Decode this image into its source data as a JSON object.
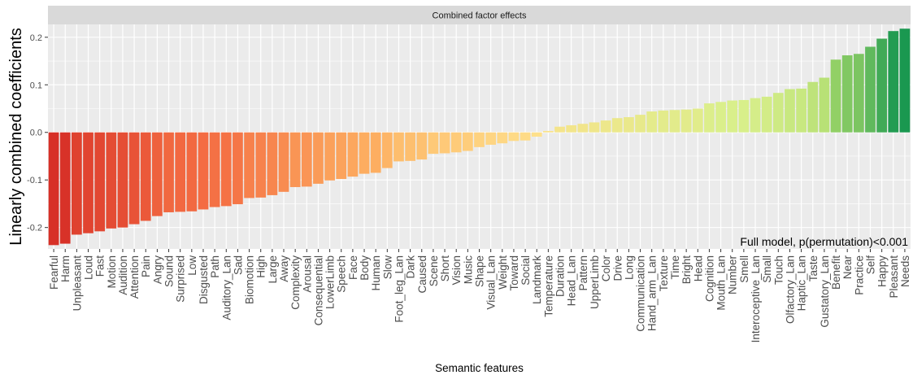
{
  "chart_data": {
    "type": "bar",
    "strip_title": "Combined factor effects",
    "xlabel": "Semantic features",
    "ylabel": "Linearly combined coefficients",
    "annotation": "Full model, p(permutation)<0.001",
    "ylim": [
      -0.245,
      0.227
    ],
    "yticks": [
      -0.2,
      -0.1,
      0.0,
      0.1,
      0.2
    ],
    "ytick_labels": [
      "-0.2",
      "-0.1",
      "0.0",
      "0.1",
      "0.2"
    ],
    "grid": true,
    "color_scale": [
      "#d73027",
      "#f46d43",
      "#fdae61",
      "#fee08b",
      "#d9ef8b",
      "#a6d96a",
      "#1a9850"
    ],
    "categories": [
      "Fearful",
      "Harm",
      "Unpleasant",
      "Loud",
      "Fast",
      "Motion",
      "Audition",
      "Attention",
      "Pain",
      "Angry",
      "Sound",
      "Surprised",
      "Low",
      "Disgusted",
      "Path",
      "Auditory_Lan",
      "Sad",
      "Biomotion",
      "High",
      "Large",
      "Away",
      "Complexity",
      "Arousal",
      "Consequential",
      "LowerLimb",
      "Speech",
      "Face",
      "Body",
      "Human",
      "Slow",
      "Foot_leg_Lan",
      "Dark",
      "Caused",
      "Scene",
      "Short",
      "Vision",
      "Music",
      "Shape",
      "Visual_Lan",
      "Weight",
      "Toward",
      "Social",
      "Landmark",
      "Temperature",
      "Duration",
      "Head_Lan",
      "Pattern",
      "UpperLimb",
      "Color",
      "Drive",
      "Long",
      "Communication",
      "Hand_arm_Lan",
      "Texture",
      "Time",
      "Bright",
      "Head",
      "Cognition",
      "Mouth_Lan",
      "Number",
      "Smell",
      "Interoceptive_Lan",
      "Small",
      "Touch",
      "Olfactory_Lan",
      "Haptic_Lan",
      "Taste",
      "Gustatory_Lan",
      "Benefit",
      "Near",
      "Practice",
      "Self",
      "Happy",
      "Pleasant",
      "Needs"
    ],
    "values": [
      -0.237,
      -0.234,
      -0.215,
      -0.212,
      -0.208,
      -0.202,
      -0.2,
      -0.193,
      -0.186,
      -0.176,
      -0.168,
      -0.167,
      -0.166,
      -0.162,
      -0.157,
      -0.155,
      -0.151,
      -0.138,
      -0.137,
      -0.132,
      -0.125,
      -0.115,
      -0.114,
      -0.108,
      -0.101,
      -0.098,
      -0.093,
      -0.087,
      -0.085,
      -0.075,
      -0.061,
      -0.06,
      -0.057,
      -0.045,
      -0.044,
      -0.042,
      -0.039,
      -0.031,
      -0.026,
      -0.023,
      -0.018,
      -0.017,
      -0.009,
      0.003,
      0.012,
      0.015,
      0.018,
      0.021,
      0.025,
      0.03,
      0.032,
      0.037,
      0.044,
      0.046,
      0.047,
      0.048,
      0.05,
      0.061,
      0.064,
      0.067,
      0.068,
      0.072,
      0.075,
      0.083,
      0.091,
      0.092,
      0.106,
      0.115,
      0.153,
      0.162,
      0.165,
      0.18,
      0.197,
      0.213,
      0.218
    ]
  }
}
